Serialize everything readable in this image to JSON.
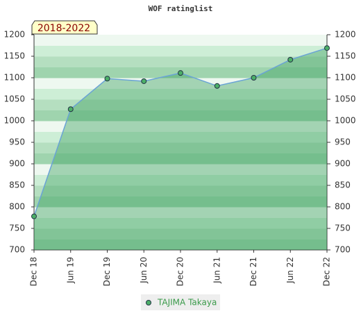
{
  "chart_data": {
    "type": "line",
    "title": "WOF ratinglist",
    "period_label": "2018-2022",
    "categories": [
      "Dec 18",
      "Jun 19",
      "Dec 19",
      "Jun 20",
      "Dec 20",
      "Jun 21",
      "Dec 21",
      "Jun 22",
      "Dec 22"
    ],
    "series": [
      {
        "name": "TAJIMA Takaya",
        "color": "#6aa3d6",
        "marker_color": "#4caf68",
        "values": [
          778,
          1027,
          1098,
          1092,
          1111,
          1081,
          1100,
          1142,
          1169
        ]
      }
    ],
    "ylim": [
      700,
      1200
    ],
    "yticks": [
      700,
      750,
      800,
      850,
      900,
      950,
      1000,
      1050,
      1100,
      1150,
      1200
    ],
    "y2lim": [
      700,
      1200
    ],
    "y2ticks": [
      700,
      750,
      800,
      850,
      900,
      950,
      1000,
      1050,
      1100,
      1150,
      1200
    ]
  }
}
